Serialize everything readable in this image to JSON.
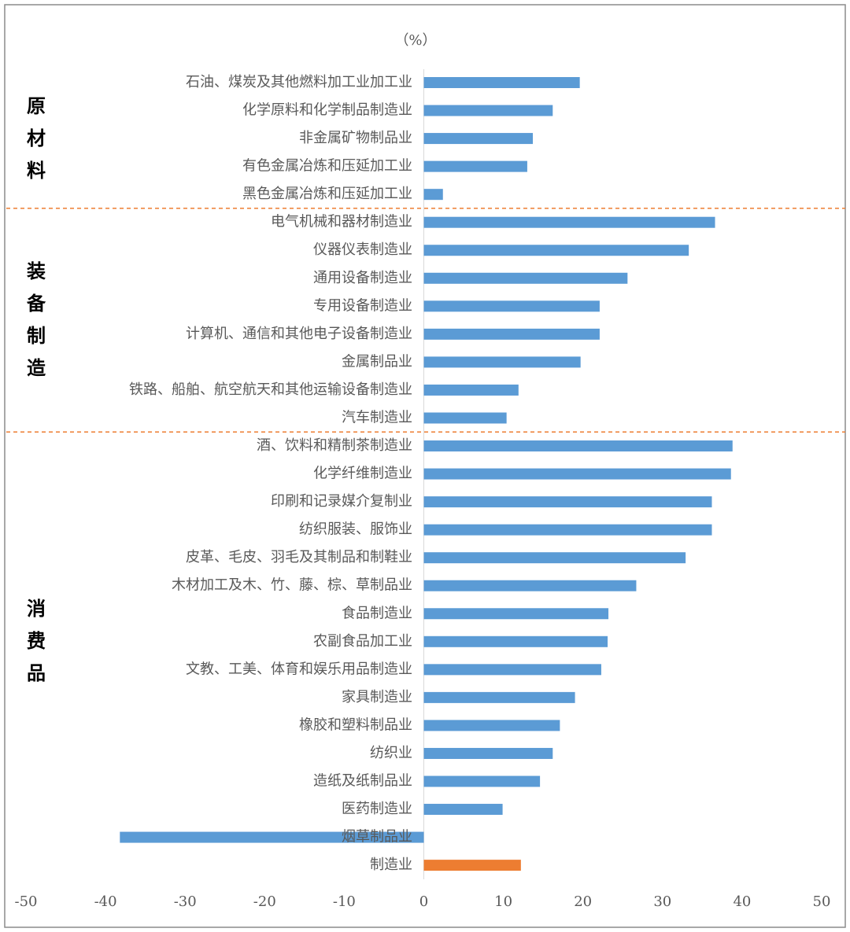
{
  "chart_data": {
    "type": "bar",
    "orientation": "horizontal",
    "unit_label": "（%）",
    "xlim": [
      -50,
      50
    ],
    "xticks": [
      -50,
      -40,
      -30,
      -20,
      -10,
      0,
      10,
      20,
      30,
      40,
      50
    ],
    "grid": false,
    "color": "#5b9bd5",
    "group_separator_color": "#ed7d31",
    "groups": [
      {
        "label": "原材料",
        "categories": [
          "石油、煤炭及其他燃料加工业加工业",
          "化学原料和化学制品制造业",
          "非金属矿物制品业",
          "有色金属冶炼和压延加工业",
          "黑色金属冶炼和压延加工业"
        ],
        "values": [
          19.6,
          16.2,
          13.7,
          13.0,
          2.4
        ]
      },
      {
        "label": "装备制造",
        "categories": [
          "电气机械和器材制造业",
          "仪器仪表制造业",
          "通用设备制造业",
          "专用设备制造业",
          "计算机、通信和其他电子设备制造业",
          "金属制品业",
          "铁路、船舶、航空航天和其他运输设备制造业",
          "汽车制造业"
        ],
        "values": [
          36.6,
          33.3,
          25.6,
          22.1,
          22.1,
          19.7,
          11.9,
          10.4
        ]
      },
      {
        "label": "消费品",
        "categories": [
          "酒、饮料和精制茶制造业",
          "化学纤维制造业",
          "印刷和记录媒介复制业",
          "纺织服装、服饰业",
          "皮革、毛皮、羽毛及其制品和制鞋业",
          "木材加工及木、竹、藤、棕、草制品业",
          "食品制造业",
          "农副食品加工业",
          "文教、工美、体育和娱乐用品制造业",
          "家具制造业",
          "橡胶和塑料制品业",
          "纺织业",
          "造纸及纸制品业",
          "医药制造业",
          "烟草制品业"
        ],
        "values": [
          38.8,
          38.6,
          36.2,
          36.2,
          32.9,
          26.7,
          23.2,
          23.1,
          22.3,
          19.0,
          17.1,
          16.2,
          14.6,
          9.9,
          -38.2
        ]
      }
    ],
    "total": {
      "category": "制造业",
      "value": 12.2,
      "color": "#ed7d31"
    }
  }
}
